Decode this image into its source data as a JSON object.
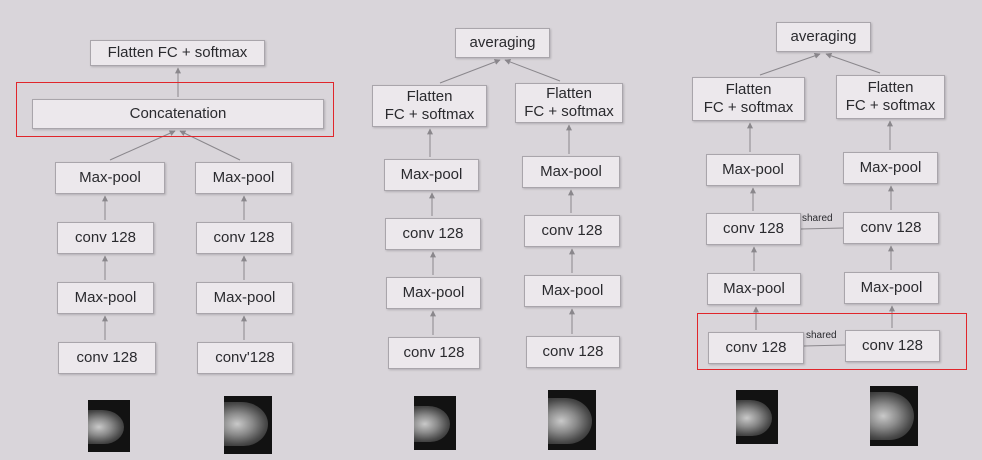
{
  "colors": {
    "background": "#d9d5da",
    "box_fill": "#ece8ec",
    "box_border": "#a9a5ab",
    "highlight": "#e0262b",
    "arrow": "#8a878c"
  },
  "panel_a": {
    "top": "Flatten FC + softmax",
    "concat": "Concatenation",
    "col1": [
      "Max-pool",
      "conv 128",
      "Max-pool",
      "conv 128"
    ],
    "col2": [
      "Max-pool",
      "conv 128",
      "Max-pool",
      "conv'128"
    ]
  },
  "panel_b": {
    "top": "averaging",
    "col1_fc": "Flatten\nFC + softmax",
    "col2_fc": "Flatten\nFC + softmax",
    "col1": [
      "Max-pool",
      "conv 128",
      "Max-pool",
      "conv 128"
    ],
    "col2": [
      "Max-pool",
      "conv 128",
      "Max-pool",
      "conv 128"
    ]
  },
  "panel_c": {
    "top": "averaging",
    "col1_fc": "Flatten\nFC + softmax",
    "col2_fc": "Flatten\nFC + softmax",
    "col1": [
      "Max-pool",
      "conv 128",
      "Max-pool",
      "conv 128"
    ],
    "col2": [
      "Max-pool",
      "conv 128",
      "Max-pool",
      "conv 128"
    ],
    "shared_upper": "shared",
    "shared_lower": "shared"
  }
}
